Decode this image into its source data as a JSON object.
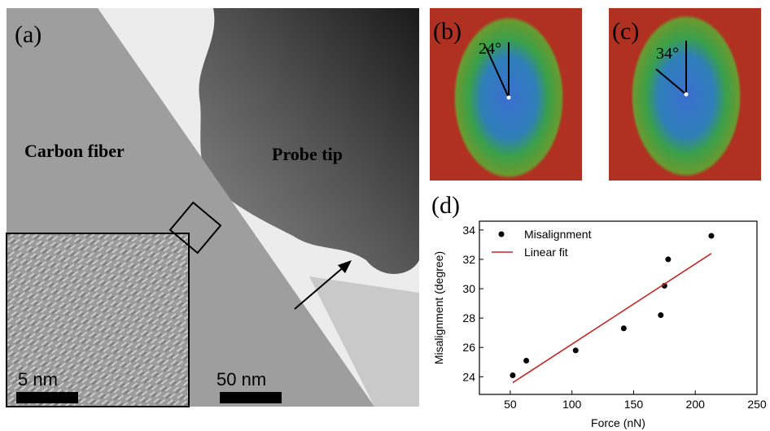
{
  "panel_a": {
    "label": "(a)",
    "left_label": "Carbon fiber",
    "right_label": "Probe tip",
    "inset_scale": "5 nm",
    "scale": "50 nm"
  },
  "panel_b": {
    "label": "(b)",
    "angle": "24°"
  },
  "panel_c": {
    "label": "(c)",
    "angle": "34°"
  },
  "chart_data": {
    "type": "scatter",
    "label": "(d)",
    "x_label": "Force (nN)",
    "y_label": "Misalignment (degree)",
    "series": [
      {
        "name": "Misalignment",
        "type": "scatter",
        "color": "#000000",
        "x": [
          52,
          63,
          103,
          142,
          172,
          175,
          178,
          213
        ],
        "values": [
          24.1,
          25.1,
          25.8,
          27.3,
          28.2,
          30.2,
          32.0,
          33.6
        ]
      },
      {
        "name": "Linear fit",
        "type": "line",
        "color": "#c62828",
        "x": [
          52,
          213
        ],
        "values": [
          23.6,
          32.4
        ]
      }
    ],
    "xlim": [
      25,
      250
    ],
    "ylim": [
      22.8,
      34.6
    ],
    "xticks": [
      50,
      100,
      150,
      200,
      250
    ],
    "yticks": [
      24,
      26,
      28,
      30,
      32,
      34
    ],
    "legend": "upper left"
  }
}
